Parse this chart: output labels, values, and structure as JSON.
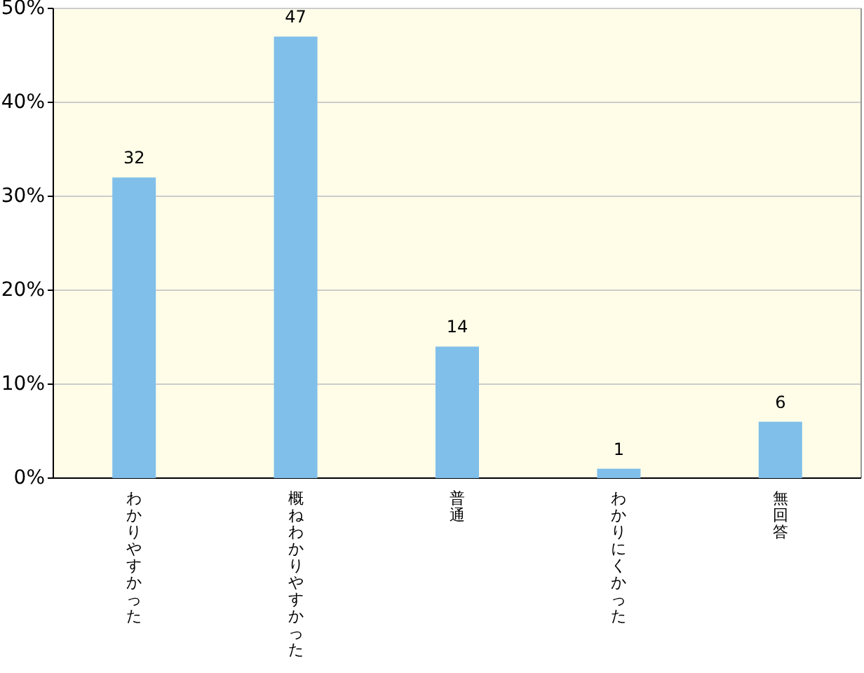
{
  "chart_data": {
    "type": "bar",
    "categories": [
      "わかりやすかった",
      "概ねわかりやすかった",
      "普通",
      "わかりにくかった",
      "無回答"
    ],
    "values": [
      32,
      47,
      14,
      1,
      6
    ],
    "color": "#80bfea",
    "ylim": [
      0,
      50
    ],
    "yticks": [
      {
        "value": 0,
        "label": "0%"
      },
      {
        "value": 10,
        "label": "10%"
      },
      {
        "value": 20,
        "label": "20%"
      },
      {
        "value": 30,
        "label": "30%"
      },
      {
        "value": 40,
        "label": "40%"
      },
      {
        "value": 50,
        "label": "50%"
      }
    ],
    "grid": "y",
    "data_labels": true
  }
}
